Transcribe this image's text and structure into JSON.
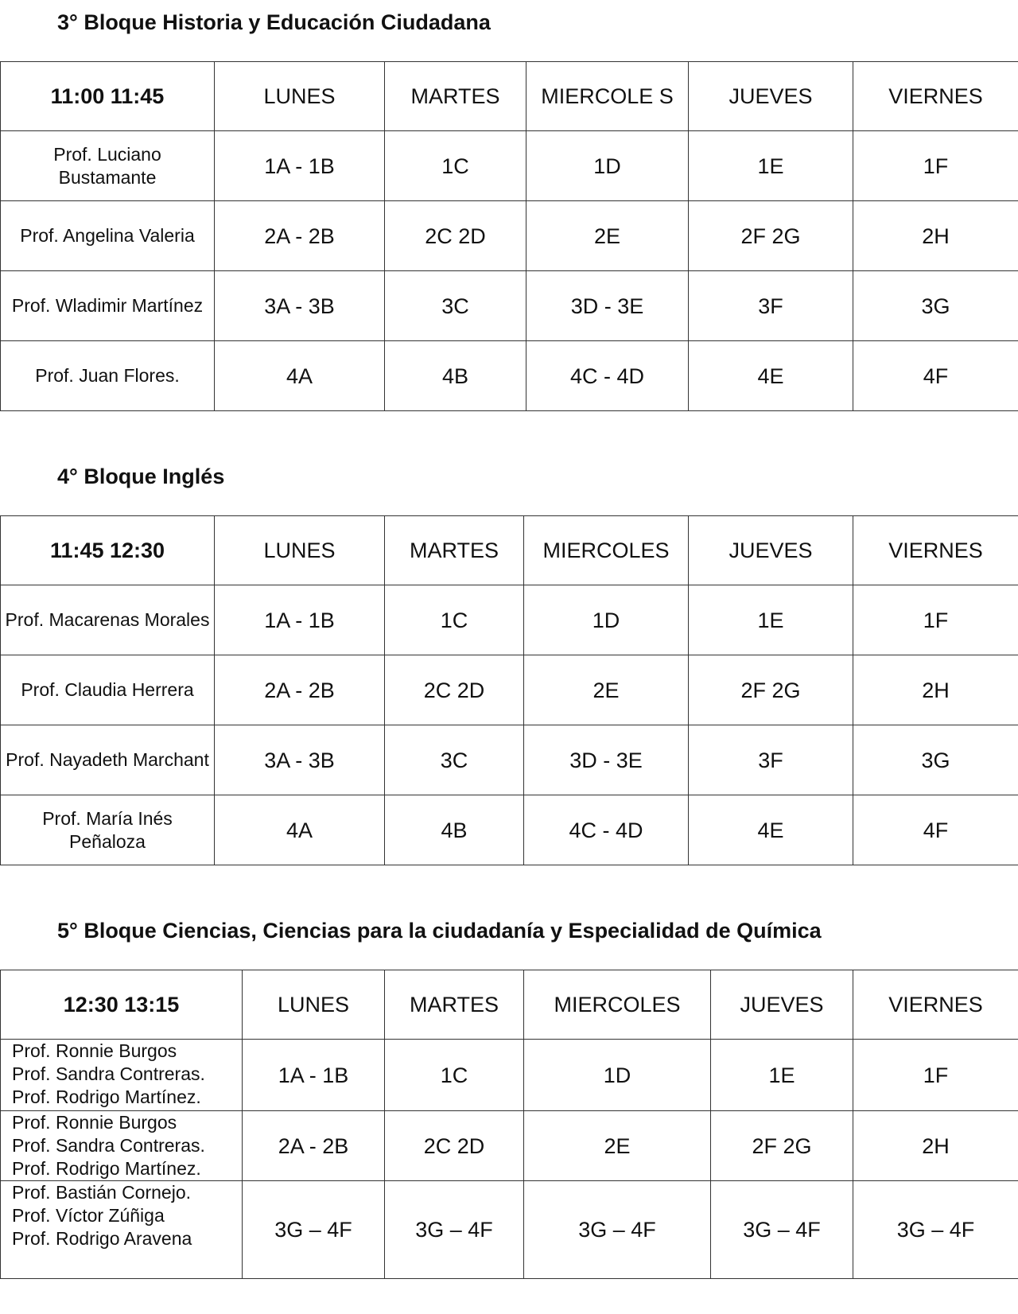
{
  "blocks": [
    {
      "title": "3° Bloque Historia y Educación Ciudadana",
      "header": [
        "11:00 11:45",
        "LUNES",
        "MARTES",
        "MIERCOLE S",
        "JUEVES",
        "VIERNES"
      ],
      "rows": [
        [
          "Prof. Luciano Bustamante",
          "1A - 1B",
          "1C",
          "1D",
          "1E",
          "1F"
        ],
        [
          "Prof. Angelina Valeria",
          "2A - 2B",
          "2C 2D",
          "2E",
          "2F 2G",
          "2H"
        ],
        [
          "Prof. Wladimir Martínez",
          "3A - 3B",
          "3C",
          "3D - 3E",
          "3F",
          "3G"
        ],
        [
          "Prof. Juan Flores.",
          "4A",
          "4B",
          "4C - 4D",
          "4E",
          "4F"
        ]
      ]
    },
    {
      "title": "4° Bloque Inglés",
      "header": [
        "11:45 12:30",
        "LUNES",
        "MARTES",
        "MIERCOLES",
        "JUEVES",
        "VIERNES"
      ],
      "rows": [
        [
          "Prof. Macarenas Morales",
          "1A - 1B",
          "1C",
          "1D",
          "1E",
          "1F"
        ],
        [
          "Prof. Claudia Herrera",
          "2A - 2B",
          "2C 2D",
          "2E",
          "2F 2G",
          "2H"
        ],
        [
          "Prof. Nayadeth Marchant",
          "3A - 3B",
          "3C",
          "3D - 3E",
          "3F",
          "3G"
        ],
        [
          "Prof. María Inés Peñaloza",
          "4A",
          "4B",
          "4C - 4D",
          "4E",
          "4F"
        ]
      ]
    },
    {
      "title": "5° Bloque Ciencias, Ciencias para la ciudadanía y Especialidad de Química",
      "header": [
        "12:30 13:15",
        "LUNES",
        "MARTES",
        "MIERCOLES",
        "JUEVES",
        "VIERNES"
      ],
      "rows": [
        [
          [
            "Prof. Ronnie Burgos",
            "Prof. Sandra Contreras.",
            "Prof. Rodrigo Martínez."
          ],
          "1A - 1B",
          "1C",
          "1D",
          "1E",
          "1F"
        ],
        [
          [
            "Prof. Ronnie Burgos",
            "Prof. Sandra Contreras.",
            "Prof. Rodrigo Martínez."
          ],
          "2A - 2B",
          "2C 2D",
          "2E",
          "2F 2G",
          "2H"
        ],
        [
          [
            "Prof. Bastián Cornejo.",
            "Prof. Víctor Zúñiga",
            "Prof. Rodrigo Aravena"
          ],
          "3G – 4F",
          "3G – 4F",
          "3G – 4F",
          "3G – 4F",
          "3G – 4F"
        ]
      ]
    }
  ]
}
